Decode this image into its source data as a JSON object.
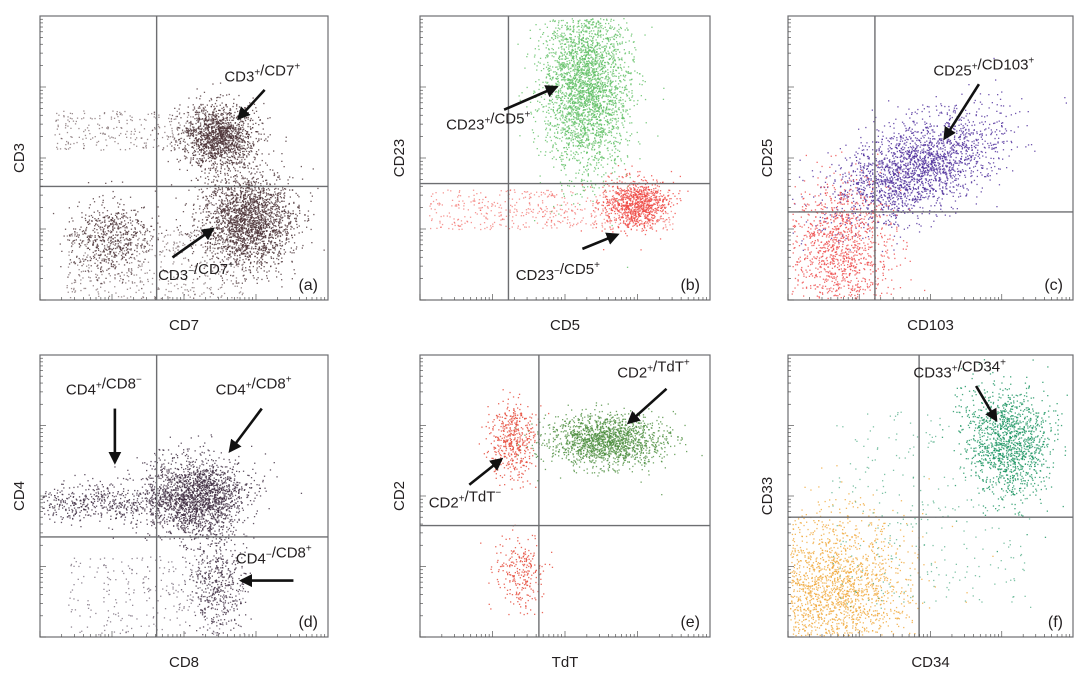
{
  "chart_data": [
    {
      "panel": "(a)",
      "type": "scatter",
      "xlabel": "CD7",
      "ylabel": "CD3",
      "scale": "log",
      "grid": false,
      "legend": "none",
      "populations": [
        {
          "name": "CD3+/CD7+",
          "color": "#4a3134",
          "sup": [
            "+",
            "+"
          ]
        },
        {
          "name": "CD3-/CD7+",
          "color": "#4a3134",
          "sup": [
            "−",
            "+"
          ]
        },
        {
          "name": "",
          "color": "#4a3134"
        }
      ]
    },
    {
      "panel": "(b)",
      "type": "scatter",
      "xlabel": "CD5",
      "ylabel": "CD23",
      "scale": "log",
      "grid": false,
      "legend": "none",
      "populations": [
        {
          "name": "CD23+/CD5+",
          "color": "#5fbf64",
          "sup": [
            "+",
            "+"
          ]
        },
        {
          "name": "CD23-/CD5+",
          "color": "#ef4540",
          "sup": [
            "−",
            "+"
          ]
        }
      ]
    },
    {
      "panel": "(c)",
      "type": "scatter",
      "xlabel": "CD103",
      "ylabel": "CD25",
      "scale": "log",
      "grid": false,
      "legend": "none",
      "populations": [
        {
          "name": "CD25+/CD103+",
          "color": "#4b2b9a",
          "sup": [
            "+",
            "+"
          ]
        },
        {
          "name": "",
          "color": "#ee4848"
        }
      ]
    },
    {
      "panel": "(d)",
      "type": "scatter",
      "xlabel": "CD8",
      "ylabel": "CD4",
      "scale": "log",
      "grid": false,
      "legend": "none",
      "populations": [
        {
          "name": "CD4+/CD8-",
          "color": "#3c2a3f",
          "sup": [
            "+",
            "−"
          ]
        },
        {
          "name": "CD4+/CD8+",
          "color": "#3c2a3f",
          "sup": [
            "+",
            "+"
          ]
        },
        {
          "name": "CD4-/CD8+",
          "color": "#3c2a3f",
          "sup": [
            "−",
            "+"
          ]
        }
      ]
    },
    {
      "panel": "(e)",
      "type": "scatter",
      "xlabel": "TdT",
      "ylabel": "CD2",
      "scale": "log",
      "grid": false,
      "legend": "none",
      "populations": [
        {
          "name": "CD2+/TdT+",
          "color": "#4e8f3e",
          "sup": [
            "+",
            "+"
          ]
        },
        {
          "name": "CD2+/TdT-",
          "color": "#e54535",
          "sup": [
            "+",
            "−"
          ]
        },
        {
          "name": "",
          "color": "#e54535"
        }
      ]
    },
    {
      "panel": "(f)",
      "type": "scatter",
      "xlabel": "CD34",
      "ylabel": "CD33",
      "scale": "log",
      "grid": false,
      "legend": "none",
      "populations": [
        {
          "name": "CD33+/CD34+",
          "color": "#16925e",
          "sup": [
            "+",
            "+"
          ]
        },
        {
          "name": "",
          "color": "#f0a838"
        }
      ]
    }
  ]
}
